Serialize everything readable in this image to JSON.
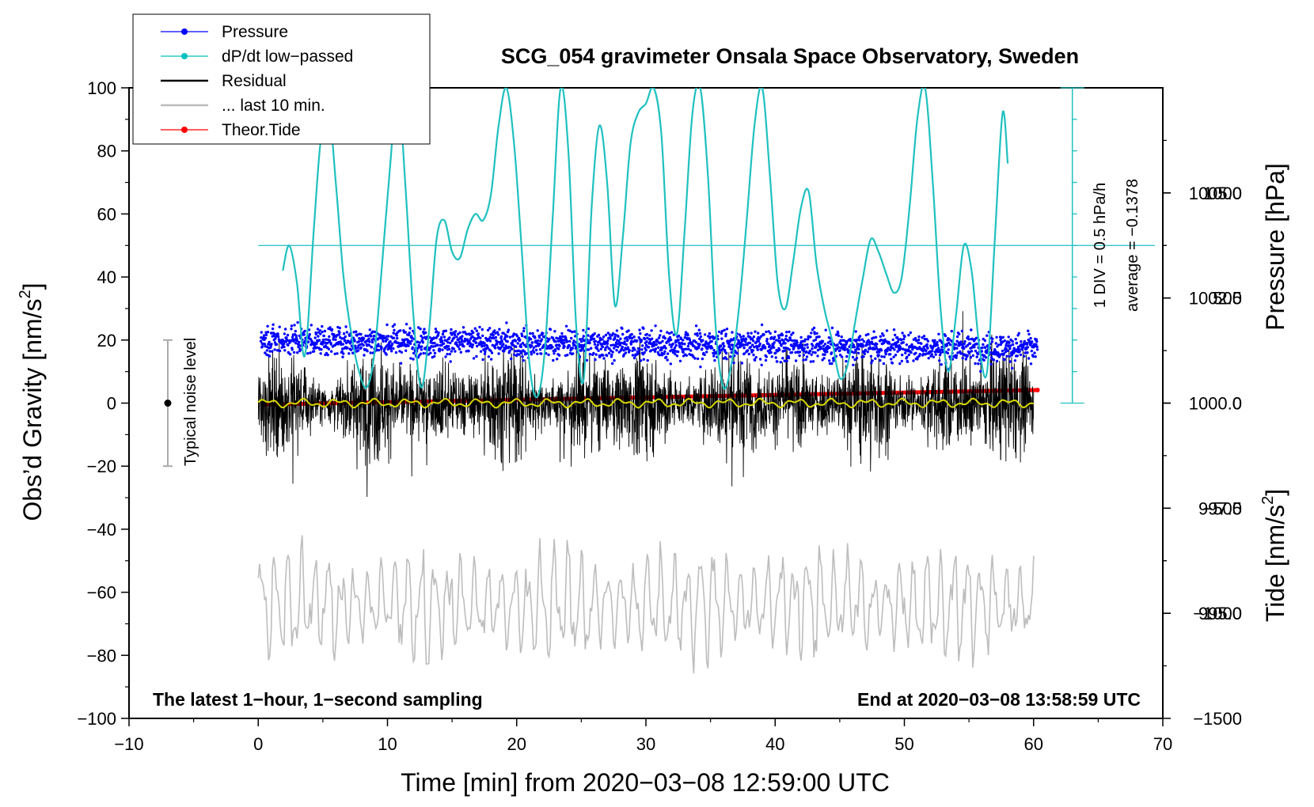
{
  "chart_data": {
    "type": "line",
    "title": "SCG_054 gravimeter Onsala Space Observatory, Sweden",
    "xlabel": "Time [min] from 2020−03−08 12:59:00 UTC",
    "ylabel_left_main": "Obs’d Gravity [nm/s",
    "ylabel_left_sup": "2",
    "ylabel_left_close": "]",
    "ylabel_right_pressure": "Pressure [hPa]",
    "ylabel_right_tide_main": "Tide [nm/s",
    "ylabel_right_tide_sup": "2",
    "ylabel_right_tide_close": "]",
    "xlim": [
      -10,
      70
    ],
    "ylim": [
      -100,
      100
    ],
    "pressure_lim": [
      992.5,
      1007.5
    ],
    "tide_lim": [
      -1500,
      1500
    ],
    "x_ticks": [
      -10,
      0,
      10,
      20,
      30,
      40,
      50,
      60,
      70
    ],
    "x_tick_labels": [
      "−10",
      "0",
      "10",
      "20",
      "30",
      "40",
      "50",
      "60",
      "70"
    ],
    "y_ticks": [
      100,
      80,
      60,
      40,
      20,
      0,
      -20,
      -40,
      -60,
      -80,
      -100
    ],
    "y_tick_labels": [
      "100",
      "80",
      "60",
      "40",
      "20",
      "0",
      "−20",
      "−40",
      "−60",
      "−80",
      "−100"
    ],
    "pressure_ticks": [
      1005.0,
      1002.5,
      1000.0,
      997.5,
      995.0
    ],
    "pressure_tick_labels": [
      "1005.0",
      "1002.5",
      "1000.0",
      "997.5",
      "995.0"
    ],
    "tide_ticks": [
      1000,
      500,
      0,
      -500,
      -1000,
      -1500
    ],
    "tide_tick_labels": [
      "1000",
      "500",
      "0",
      "−500",
      "−1000",
      "−1500"
    ],
    "legend": [
      {
        "label": "Pressure",
        "color": "#0000ff",
        "marker": "dot"
      },
      {
        "label": "dP/dt low−passed",
        "color": "#00c0c0",
        "marker": "dot"
      },
      {
        "label": "Residual",
        "color": "#000000",
        "marker": "none"
      },
      {
        "label": "... last 10 min.",
        "color": "#bbbbbb",
        "marker": "none"
      },
      {
        "label": "Theor.Tide",
        "color": "#ff0000",
        "marker": "dot"
      }
    ],
    "annotations": {
      "bottom_left": "The latest 1−hour, 1−second sampling",
      "bottom_right": "End at 2020−03−08 13:58:59 UTC",
      "noise_label": "Typical noise level",
      "div_label": "1 DIV = 0.5 hPa/h",
      "average_label": "average = −0.1378"
    },
    "noise_level": {
      "x": -7,
      "center": 0,
      "half_range": 20
    },
    "dpdt_scale": {
      "x": 63,
      "baseline": 0,
      "top": 100,
      "divisions": 10,
      "zero_line_y": 50
    },
    "series": [
      {
        "name": "Pressure",
        "units": "hPa",
        "x_start": 0.2,
        "x_end": 60.3,
        "level_start": 1001.5,
        "level_end": 1001.3,
        "noise": 0.45
      },
      {
        "name": "dP/dt low−passed",
        "units": "nm/s2 scaled",
        "x": [
          1.9,
          2.4,
          3.0,
          3.6,
          4.3,
          4.8,
          5.4,
          6.0,
          6.6,
          7.2,
          7.8,
          8.4,
          9.0,
          9.6,
          10.2,
          10.8,
          11.4,
          12.0,
          12.6,
          13.2,
          13.8,
          14.4,
          15.0,
          15.6,
          16.2,
          16.8,
          17.4,
          18.0,
          18.6,
          19.2,
          19.8,
          20.4,
          21.0,
          21.6,
          22.2,
          22.8,
          23.4,
          24.0,
          24.6,
          25.2,
          25.8,
          26.4,
          27.0,
          27.6,
          28.2,
          28.8,
          29.4,
          30.0,
          30.6,
          31.2,
          31.8,
          32.4,
          33.0,
          33.6,
          34.2,
          34.8,
          35.4,
          36.0,
          36.6,
          37.2,
          37.8,
          38.4,
          39.0,
          39.6,
          40.2,
          40.8,
          41.4,
          42.0,
          42.6,
          43.2,
          43.8,
          44.4,
          45.0,
          45.6,
          46.2,
          46.8,
          47.4,
          48.0,
          48.6,
          49.2,
          49.8,
          50.4,
          51.0,
          51.6,
          52.2,
          52.8,
          53.4,
          54.0,
          54.6,
          55.2,
          55.8,
          56.4,
          57.0,
          57.6,
          58.0
        ],
        "y": [
          42,
          50,
          38,
          15,
          55,
          82,
          96,
          70,
          40,
          22,
          10,
          5,
          16,
          45,
          75,
          100,
          68,
          28,
          5,
          22,
          52,
          58,
          48,
          46,
          55,
          60,
          58,
          66,
          88,
          100,
          82,
          48,
          12,
          2,
          18,
          60,
          100,
          80,
          25,
          8,
          62,
          88,
          70,
          31,
          52,
          82,
          92,
          95,
          100,
          85,
          40,
          22,
          55,
          92,
          100,
          72,
          24,
          5,
          12,
          30,
          58,
          88,
          100,
          72,
          38,
          30,
          45,
          62,
          67,
          44,
          30,
          20,
          8,
          12,
          26,
          40,
          52,
          48,
          41,
          35,
          40,
          62,
          90,
          100,
          70,
          30,
          10,
          28,
          50,
          42,
          18,
          10,
          52,
          92,
          76
        ]
      },
      {
        "name": "Residual",
        "units": "nm/s2",
        "x_start": 0,
        "x_end": 60,
        "amplitude": 22
      },
      {
        "name": "Residual mean",
        "units": "nm/s2",
        "x_start": 0,
        "x_end": 60,
        "level": 0
      },
      {
        "name": "... last 10 min.",
        "units": "nm/s2",
        "x_start": 0,
        "x_end": 60,
        "center": -64,
        "amplitude": 18
      },
      {
        "name": "Theor.Tide",
        "units": "nm/s2",
        "x": [
          0.3,
          60.3
        ],
        "y": [
          -7,
          62
        ]
      }
    ]
  }
}
